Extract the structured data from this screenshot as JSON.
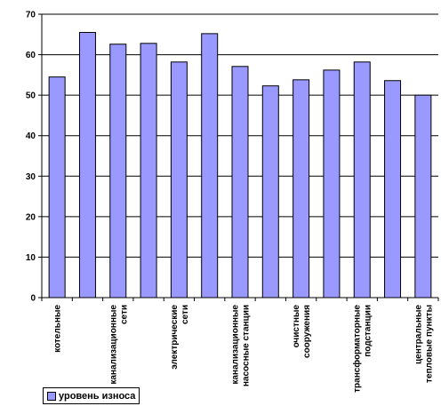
{
  "chart_data": {
    "type": "bar",
    "categories": [
      "котельные",
      "",
      "канализационные сети",
      "",
      "электрические сети",
      "",
      "канализационные насосные станции",
      "",
      "очистные сооружения",
      "",
      "трансформаторные подстанции",
      "",
      "центральные тепловые пункты"
    ],
    "series": [
      {
        "name": "уровень износа",
        "values": [
          54.5,
          65.5,
          62.6,
          62.8,
          58.2,
          65.2,
          57.1,
          52.3,
          53.8,
          56.2,
          58.2,
          53.6,
          50.0
        ],
        "color": "#9999ff"
      }
    ],
    "yticks": [
      "0",
      "10",
      "20",
      "30",
      "40",
      "50",
      "60",
      "70"
    ],
    "ylim": [
      0,
      70
    ],
    "grid": true,
    "legend_position": "bottom-left"
  }
}
